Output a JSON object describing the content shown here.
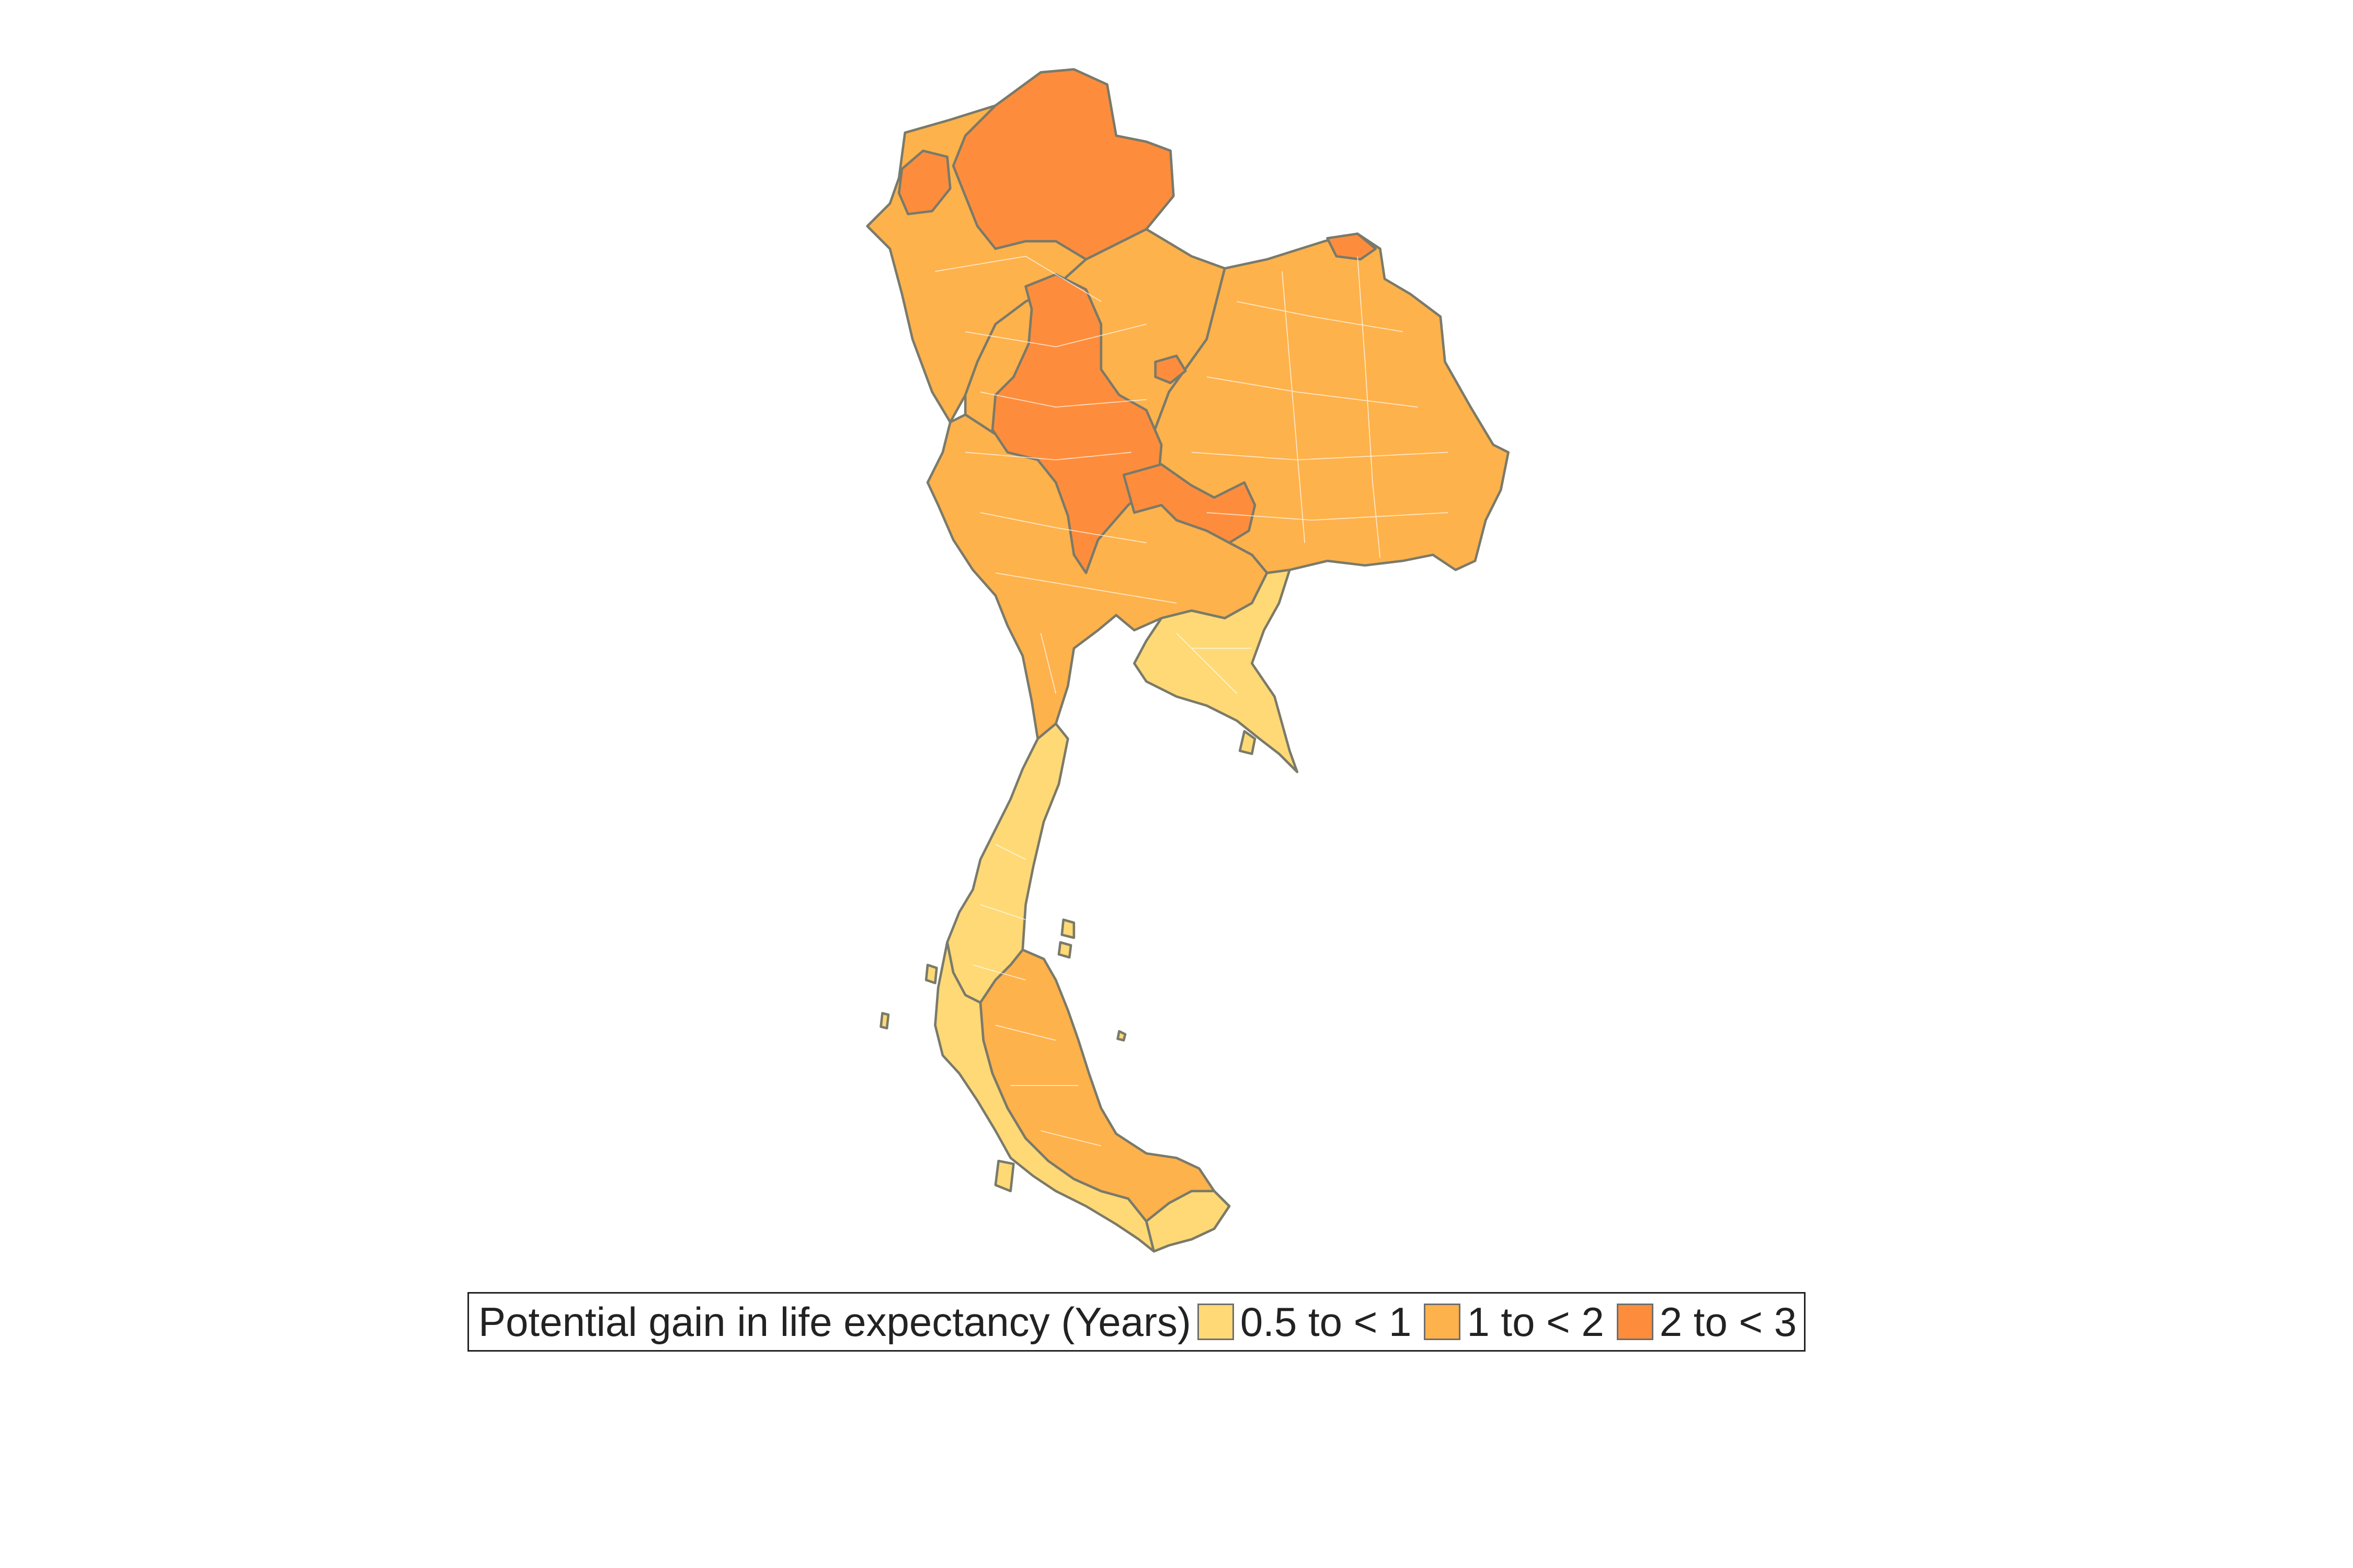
{
  "map": {
    "legend": {
      "title": "Potential gain in life expectancy (Years)",
      "classes": [
        {
          "label": "0.5 to < 1",
          "color": "#fed976"
        },
        {
          "label": "1 to < 2",
          "color": "#feb24c"
        },
        {
          "label": "2 to < 3",
          "color": "#fd8d3c"
        }
      ]
    },
    "border_color": "#7a7a6a",
    "inner_border_color": "#ffffff"
  }
}
